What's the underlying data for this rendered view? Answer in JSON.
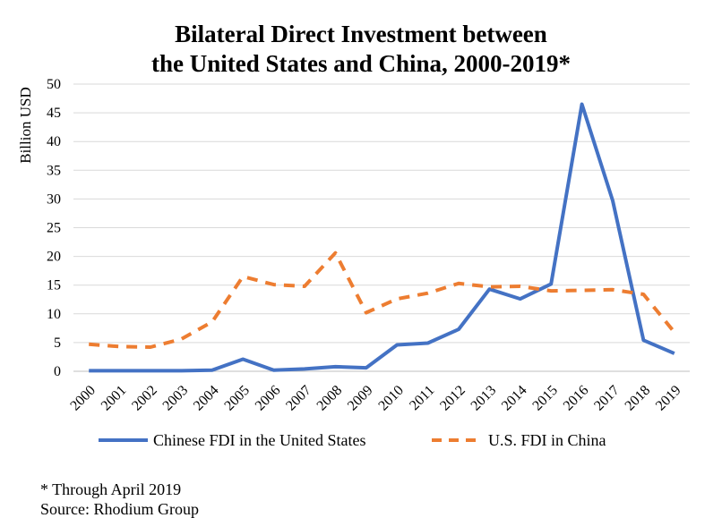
{
  "chart_data": {
    "type": "line",
    "title": "Bilateral Direct Investment between",
    "title_line2": "the United States and China, 2000-2019*",
    "xlabel": "",
    "ylabel": "Billion USD",
    "ylim": [
      0,
      50
    ],
    "yticks": [
      "0",
      "5",
      "10",
      "15",
      "20",
      "25",
      "30",
      "35",
      "40",
      "45",
      "50"
    ],
    "categories": [
      "2000",
      "2001",
      "2002",
      "2003",
      "2004",
      "2005",
      "2006",
      "2007",
      "2008",
      "2009",
      "2010",
      "2011",
      "2012",
      "2013",
      "2014",
      "2015",
      "2016",
      "2017",
      "2018",
      "2019"
    ],
    "grid": true,
    "legend_position": "bottom",
    "series": [
      {
        "name": "Chinese FDI in the United States",
        "color": "#4472C4",
        "style": "solid",
        "values": [
          0.1,
          0.1,
          0.1,
          0.1,
          0.2,
          2.1,
          0.2,
          0.4,
          0.8,
          0.6,
          4.6,
          4.9,
          7.3,
          14.3,
          12.6,
          15.2,
          46.5,
          29.7,
          5.4,
          3.1
        ]
      },
      {
        "name": "U.S. FDI in China",
        "color": "#ED7D31",
        "style": "dashed",
        "values": [
          4.7,
          4.3,
          4.2,
          5.6,
          8.6,
          16.5,
          15.1,
          14.8,
          20.6,
          10.2,
          12.6,
          13.6,
          15.3,
          14.7,
          14.8,
          14.0,
          14.1,
          14.2,
          13.4,
          6.8
        ]
      }
    ]
  },
  "notes": {
    "footnote": "* Through April 2019",
    "source": "Source: Rhodium Group"
  }
}
